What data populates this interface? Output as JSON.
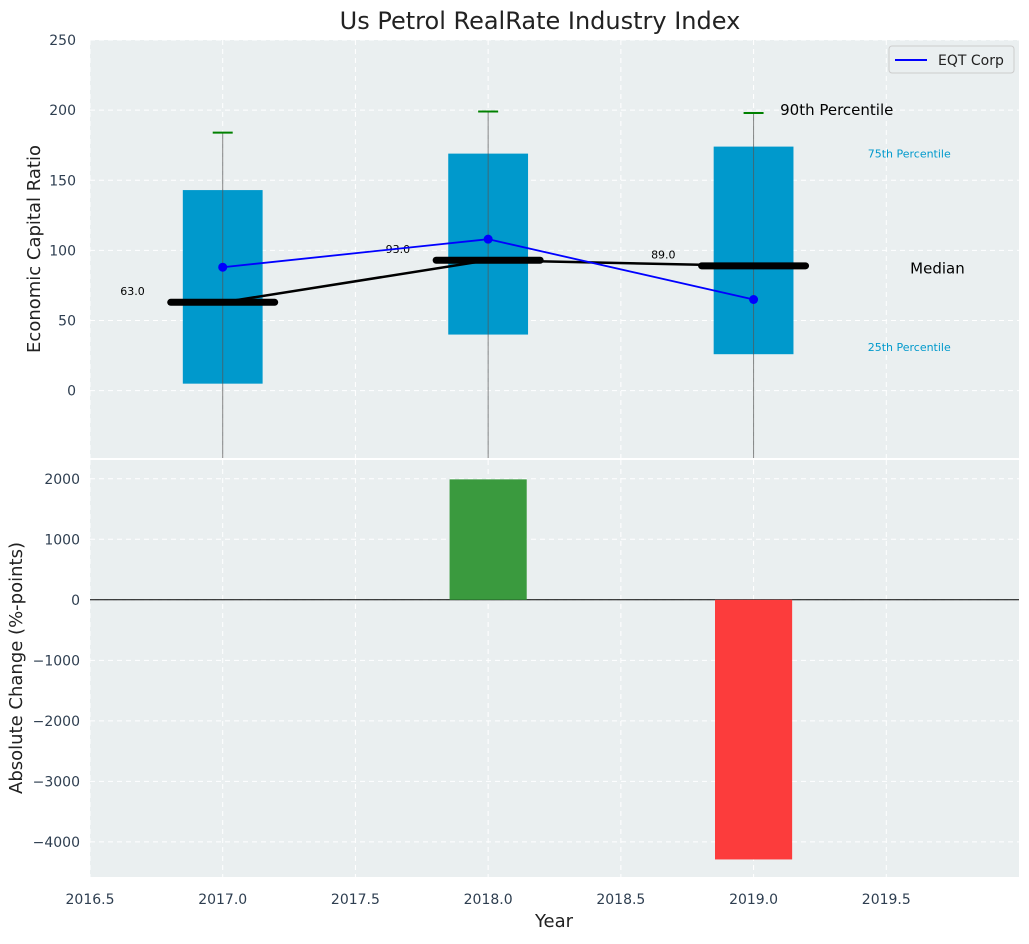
{
  "chart_data": [
    {
      "type": "box",
      "title": "Us Petrol RealRate Industry Index",
      "xlabel": "",
      "ylabel": "Economic Capital Ratio",
      "xlim": [
        2016.5,
        2020.0
      ],
      "ylim": [
        -48,
        250
      ],
      "yticks": [
        0,
        50,
        100,
        150,
        200,
        250
      ],
      "grid": true,
      "categories": [
        2017,
        2018,
        2019
      ],
      "p25": [
        5,
        40,
        26
      ],
      "p75": [
        143,
        169,
        174
      ],
      "median": [
        63,
        93,
        89
      ],
      "p90": [
        184,
        199,
        198
      ],
      "median_labels": [
        "63.0",
        "93.0",
        "89.0"
      ],
      "series": [
        {
          "name": "EQT Corp",
          "values": [
            88,
            108,
            65
          ],
          "color": "#0000ff"
        }
      ],
      "legend": {
        "placement": "top-right",
        "entries": [
          "EQT Corp"
        ]
      },
      "annotations": {
        "p90": "90th Percentile",
        "p75": "75th Percentile",
        "median": "Median",
        "p25": "25th Percentile"
      },
      "colors": {
        "box": "#0099cc",
        "whisker_cap": "#008000",
        "median": "#000000",
        "background": "#eaeff0"
      }
    },
    {
      "type": "bar",
      "xlabel": "Year",
      "ylabel": "Absolute Change (%-points)",
      "xlim": [
        2016.5,
        2020.0
      ],
      "ylim": [
        -4580,
        2310
      ],
      "xticks": [
        "2016.5",
        "2017.0",
        "2017.5",
        "2018.0",
        "2018.5",
        "2019.0",
        "2019.5"
      ],
      "yticks": [
        2000,
        1000,
        0,
        -1000,
        -2000,
        -3000,
        -4000
      ],
      "ytick_labels": [
        "2000",
        "1000",
        "0",
        "−1000",
        "−2000",
        "−3000",
        "−4000"
      ],
      "categories": [
        2018,
        2019
      ],
      "values": [
        1990,
        -4290
      ],
      "colors": {
        "positive": "#3a9a3e",
        "negative": "#fc3c3c"
      }
    }
  ]
}
